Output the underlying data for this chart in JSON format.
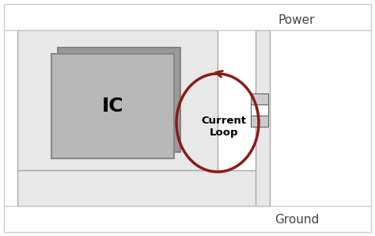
{
  "bg_color": "#ffffff",
  "board_bg": "#e8e8e8",
  "board_outline_color": "#aaaaaa",
  "ic_fill": "#b8b8b8",
  "ic_shadow": "#999999",
  "ic_outline": "#888888",
  "loop_color": "#8b1a1a",
  "power_label": "Power",
  "ground_label": "Ground",
  "ic_label": "IC",
  "loop_label": "Current\nLoop",
  "ic_fontsize": 18,
  "loop_fontsize": 9.5,
  "power_ground_fontsize": 11
}
